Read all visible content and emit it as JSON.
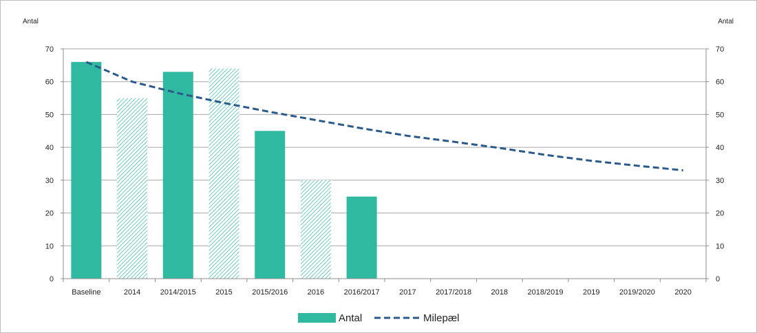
{
  "chart_data": {
    "type": "bar",
    "categories": [
      "Baseline",
      "2014",
      "2014/2015",
      "2015",
      "2015/2016",
      "2016",
      "2016/2017",
      "2017",
      "2017/2018",
      "2018",
      "2018/2019",
      "2019",
      "2019/2020",
      "2020"
    ],
    "series": [
      {
        "name": "Antal",
        "type": "bar",
        "values": [
          66,
          55,
          63,
          64,
          45,
          30,
          25,
          null,
          null,
          null,
          null,
          null,
          null,
          null
        ],
        "hatched": [
          false,
          true,
          false,
          true,
          false,
          true,
          false,
          false,
          false,
          false,
          false,
          false,
          false,
          false
        ]
      },
      {
        "name": "Milepæl",
        "type": "line",
        "style": "dashed",
        "values": [
          66,
          60,
          56.5,
          53.5,
          50.8,
          48.3,
          45.8,
          43.5,
          41.7,
          39.8,
          37.7,
          35.9,
          34.4,
          33
        ]
      }
    ],
    "ylabel_left": "Antal",
    "ylabel_right": "Antal",
    "ylim": [
      0,
      70
    ],
    "yticks": [
      0,
      10,
      20,
      30,
      40,
      50,
      60,
      70
    ],
    "grid": true,
    "legend_position": "bottom",
    "colors": {
      "bar": "#2fb9a0",
      "line": "#2a5a8c",
      "grid": "#a6a6a6",
      "axis": "#8c8c8c"
    }
  }
}
